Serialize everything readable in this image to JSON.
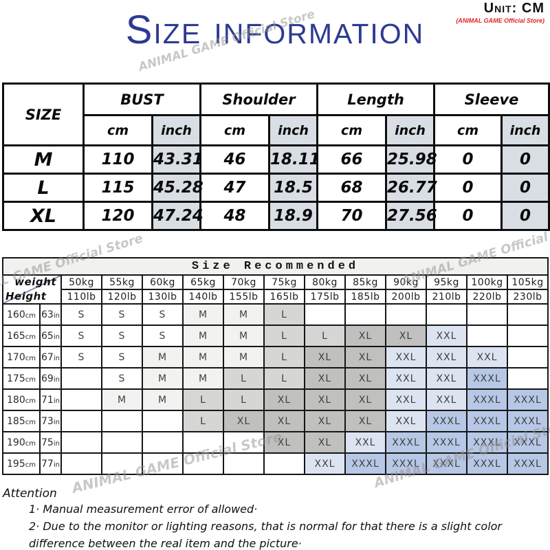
{
  "meta": {
    "unit_label": "Unit: CM",
    "store_label": "(ANIMAL GAME Official Store)",
    "title": "Size information",
    "watermark": "ANIMAL GAME Official Store"
  },
  "size_table": {
    "corner_label": "SIZE",
    "groups": [
      "BUST",
      "Shoulder",
      "Length",
      "Sleeve"
    ],
    "sub_headers": [
      "cm",
      "inch"
    ],
    "rows": [
      {
        "size": "M",
        "values": [
          "110",
          "43.31",
          "46",
          "18.11",
          "66",
          "25.98",
          "0",
          "0"
        ]
      },
      {
        "size": "L",
        "values": [
          "115",
          "45.28",
          "47",
          "18.5",
          "68",
          "26.77",
          "0",
          "0"
        ]
      },
      {
        "size": "XL",
        "values": [
          "120",
          "47.24",
          "48",
          "18.9",
          "70",
          "27.56",
          "0",
          "0"
        ]
      }
    ]
  },
  "recommend_table": {
    "title": "Size Recommended",
    "corner_top": "weight",
    "corner_bottom": "Height",
    "weights_kg": [
      "50kg",
      "55kg",
      "60kg",
      "65kg",
      "70kg",
      "75kg",
      "80kg",
      "85kg",
      "90kg",
      "95kg",
      "100kg",
      "105kg"
    ],
    "weights_lb": [
      "110lb",
      "120lb",
      "130lb",
      "140lb",
      "155lb",
      "165lb",
      "175lb",
      "185lb",
      "200lb",
      "210lb",
      "220lb",
      "230lb"
    ],
    "rows": [
      {
        "height_cm": "160",
        "height_cm_unit": "cm",
        "height_in": "63",
        "height_in_unit": "in",
        "cells": [
          "S",
          "S",
          "S",
          "M",
          "M",
          "L",
          "",
          "",
          "",
          "",
          "",
          ""
        ]
      },
      {
        "height_cm": "165",
        "height_cm_unit": "cm",
        "height_in": "65",
        "height_in_unit": "in",
        "cells": [
          "S",
          "S",
          "S",
          "M",
          "M",
          "L",
          "L",
          "XL",
          "XL",
          "XXL",
          "",
          ""
        ]
      },
      {
        "height_cm": "170",
        "height_cm_unit": "cm",
        "height_in": "67",
        "height_in_unit": "in",
        "cells": [
          "S",
          "S",
          "M",
          "M",
          "M",
          "L",
          "XL",
          "XL",
          "XXL",
          "XXL",
          "XXL",
          ""
        ]
      },
      {
        "height_cm": "175",
        "height_cm_unit": "cm",
        "height_in": "69",
        "height_in_unit": "in",
        "cells": [
          "",
          "S",
          "M",
          "M",
          "L",
          "L",
          "XL",
          "XL",
          "XXL",
          "XXL",
          "XXXL",
          ""
        ]
      },
      {
        "height_cm": "180",
        "height_cm_unit": "cm",
        "height_in": "71",
        "height_in_unit": "in",
        "cells": [
          "",
          "M",
          "M",
          "L",
          "L",
          "XL",
          "XL",
          "XL",
          "XXL",
          "XXL",
          "XXXL",
          "XXXL"
        ]
      },
      {
        "height_cm": "185",
        "height_cm_unit": "cm",
        "height_in": "73",
        "height_in_unit": "in",
        "cells": [
          "",
          "",
          "",
          "L",
          "XL",
          "XL",
          "XL",
          "XL",
          "XXL",
          "XXXL",
          "XXXL",
          "XXXL"
        ]
      },
      {
        "height_cm": "190",
        "height_cm_unit": "cm",
        "height_in": "75",
        "height_in_unit": "in",
        "cells": [
          "",
          "",
          "",
          "",
          "",
          "XL",
          "XL",
          "XXL",
          "XXXL",
          "XXXL",
          "XXXL",
          "XXXL"
        ]
      },
      {
        "height_cm": "195",
        "height_cm_unit": "cm",
        "height_in": "77",
        "height_in_unit": "in",
        "cells": [
          "",
          "",
          "",
          "",
          "",
          "",
          "XXL",
          "XXXL",
          "XXXL",
          "XXXL",
          "XXXL",
          "XXXL"
        ]
      }
    ],
    "size_fill": {
      "S": "#ffffff",
      "M": "#f2f2f0",
      "L": "#d6d6d4",
      "XL": "#c0c0be",
      "XXL": "#dce4f2",
      "XXXL": "#b7c7e6"
    }
  },
  "attention": {
    "heading": "Attention",
    "lines": [
      "1·  Manual measurement error of allowed·",
      "2·  Due to the monitor or lighting reasons, that is normal for that there is a slight color",
      "difference between the real item and the picture·"
    ]
  },
  "colors": {
    "title_blue": "#2d3a92",
    "store_red": "#e02424",
    "inch_shade": "#d9dde4",
    "recommend_title_bg": "#f1f1ef",
    "watermark_gray": "#919191"
  }
}
